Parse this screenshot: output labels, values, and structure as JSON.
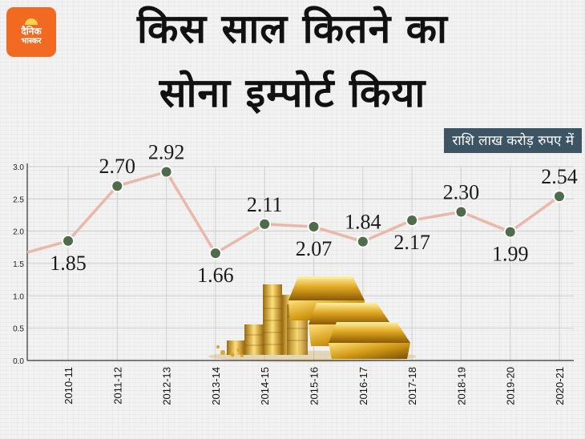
{
  "logo": {
    "line1": "दैनिक",
    "line2": "भास्कर"
  },
  "header": {
    "title_line1": "किस साल कितने का",
    "title_line2": "सोना इम्पोर्ट किया",
    "unit": "राशि लाख करोड़ रुपए में"
  },
  "colors": {
    "line": "#e8b9a8",
    "marker": "#4e6b4a",
    "badge": "#3d5465",
    "logo": "#f26a21"
  },
  "chart_data": {
    "type": "line",
    "title": "किस साल कितने का सोना इम्पोर्ट किया",
    "ylabel": "",
    "xlabel": "",
    "unit": "राशि लाख करोड़ रुपए में",
    "categories": [
      "2010-11",
      "2011-12",
      "2012-13",
      "2013-14",
      "2014-15",
      "2015-16",
      "2016-17",
      "2017-18",
      "2018-19",
      "2019-20",
      "2020-21"
    ],
    "values": [
      1.85,
      2.7,
      2.92,
      1.66,
      2.11,
      2.07,
      1.84,
      2.17,
      2.3,
      1.99,
      2.54
    ],
    "labels": [
      "1.85",
      "2.70",
      "2.92",
      "1.66",
      "2.11",
      "2.07",
      "1.84",
      "2.17",
      "2.30",
      "1.99",
      "2.54"
    ],
    "label_positions": [
      "below",
      "above",
      "above",
      "below",
      "above",
      "below",
      "above",
      "below",
      "above",
      "below",
      "above"
    ],
    "ylim": [
      0,
      3.0
    ],
    "yticks": [
      "0.0",
      "0.5",
      "1.0",
      "1.5",
      "2.0",
      "2.5",
      "3.0"
    ],
    "grid": true
  }
}
